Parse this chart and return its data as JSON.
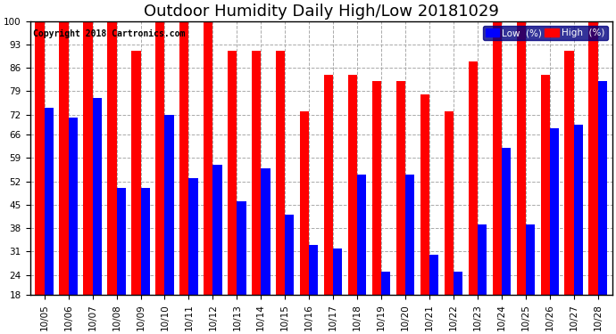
{
  "title": "Outdoor Humidity Daily High/Low 20181029",
  "copyright": "Copyright 2018 Cartronics.com",
  "categories": [
    "10/05",
    "10/06",
    "10/07",
    "10/08",
    "10/09",
    "10/10",
    "10/11",
    "10/12",
    "10/13",
    "10/14",
    "10/15",
    "10/16",
    "10/17",
    "10/18",
    "10/19",
    "10/20",
    "10/21",
    "10/22",
    "10/23",
    "10/24",
    "10/25",
    "10/26",
    "10/27",
    "10/28"
  ],
  "high_values": [
    100,
    100,
    100,
    100,
    91,
    100,
    100,
    100,
    91,
    91,
    91,
    73,
    84,
    84,
    82,
    82,
    78,
    73,
    88,
    100,
    100,
    84,
    91,
    100
  ],
  "low_values": [
    74,
    71,
    77,
    50,
    50,
    72,
    53,
    57,
    46,
    56,
    42,
    33,
    32,
    54,
    25,
    54,
    30,
    25,
    39,
    62,
    39,
    68,
    69,
    82
  ],
  "bar_color_high": "#ff0000",
  "bar_color_low": "#0000ff",
  "background_color": "#ffffff",
  "grid_color": "#aaaaaa",
  "ylim_min": 18,
  "ylim_max": 100,
  "yticks": [
    18,
    24,
    31,
    38,
    45,
    52,
    59,
    66,
    72,
    79,
    86,
    93,
    100
  ],
  "legend_low_label": "Low  (%)",
  "legend_high_label": "High  (%)",
  "bar_width": 0.38,
  "title_fontsize": 13,
  "tick_fontsize": 7.5,
  "copyright_fontsize": 7
}
